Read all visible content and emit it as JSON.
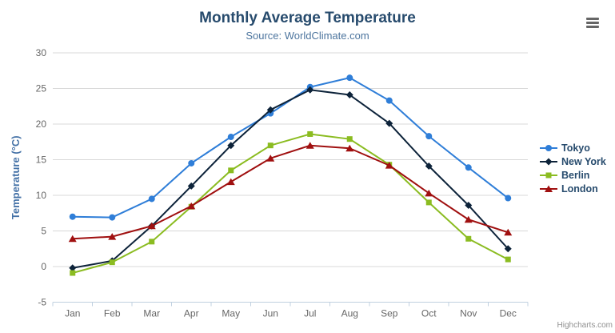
{
  "credits": "Highcharts.com",
  "export_menu": {
    "icon": "hamburger-icon"
  },
  "colors": {
    "title": "#274b6d",
    "subtitle": "#4d759e",
    "axis_label": "#666666",
    "axis_title": "#4572a7",
    "gridline": "#d8d8d8",
    "axis_line": "#c0d0e0",
    "legend_text": "#274b6d",
    "credits": "#909090"
  },
  "chart_data": {
    "type": "line",
    "title": "Monthly Average Temperature",
    "subtitle": "Source: WorldClimate.com",
    "xlabel": "",
    "ylabel": "Temperature (°C)",
    "categories": [
      "Jan",
      "Feb",
      "Mar",
      "Apr",
      "May",
      "Jun",
      "Jul",
      "Aug",
      "Sep",
      "Oct",
      "Nov",
      "Dec"
    ],
    "series": [
      {
        "name": "Tokyo",
        "color": "#2f7ed8",
        "marker": "circle",
        "values": [
          7.0,
          6.9,
          9.5,
          14.5,
          18.2,
          21.5,
          25.2,
          26.5,
          23.3,
          18.3,
          13.9,
          9.6
        ]
      },
      {
        "name": "New York",
        "color": "#0d233a",
        "marker": "diamond",
        "values": [
          -0.2,
          0.8,
          5.7,
          11.3,
          17.0,
          22.0,
          24.8,
          24.1,
          20.1,
          14.1,
          8.6,
          2.5
        ]
      },
      {
        "name": "Berlin",
        "color": "#8bbc21",
        "marker": "square",
        "values": [
          -0.9,
          0.6,
          3.5,
          8.4,
          13.5,
          17.0,
          18.6,
          17.9,
          14.3,
          9.0,
          3.9,
          1.0
        ]
      },
      {
        "name": "London",
        "color": "#a01010",
        "marker": "triangle",
        "values": [
          3.9,
          4.2,
          5.7,
          8.5,
          11.9,
          15.2,
          17.0,
          16.6,
          14.2,
          10.3,
          6.6,
          4.8
        ]
      }
    ],
    "ylim": [
      -5,
      30
    ],
    "ytick": 5,
    "grid": true,
    "legend_position": "right"
  }
}
